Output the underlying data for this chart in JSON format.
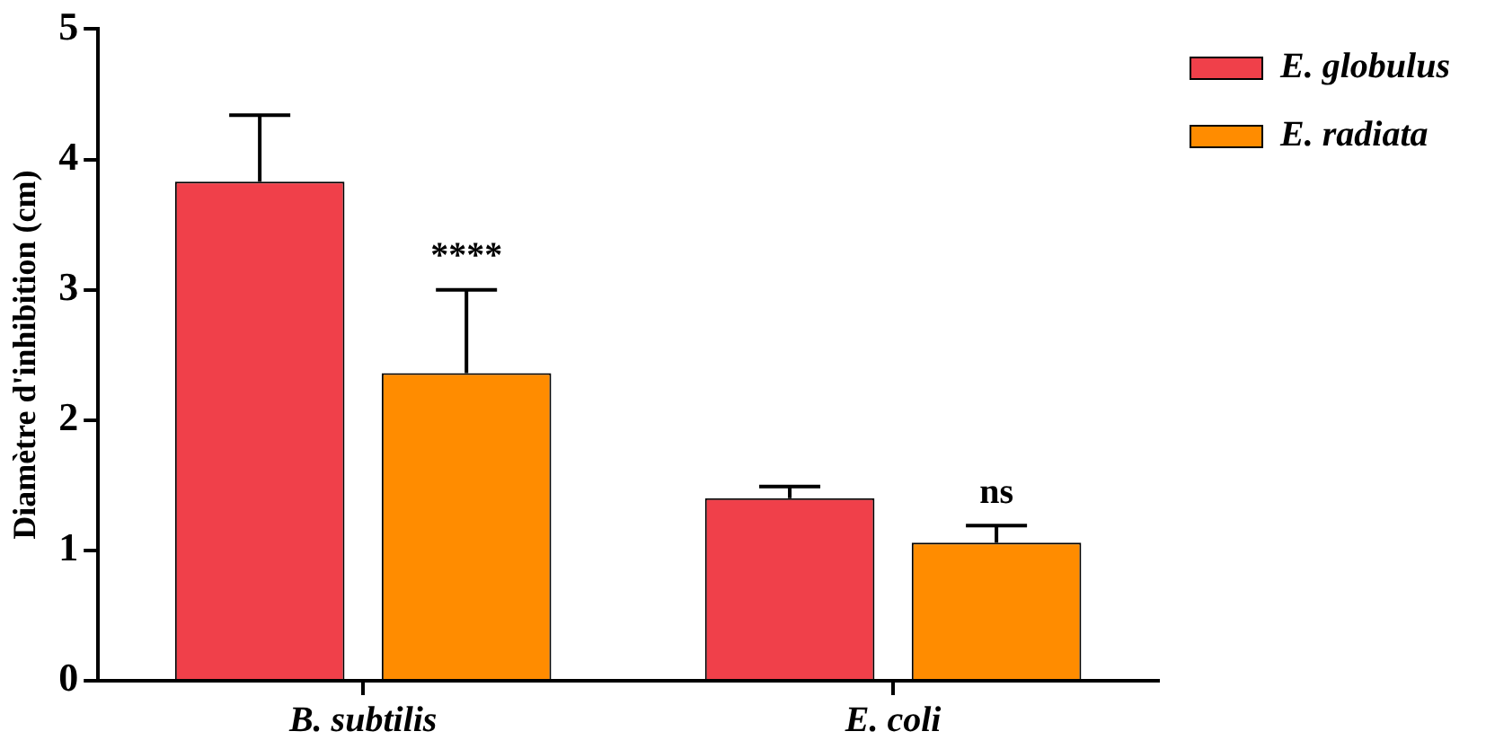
{
  "chart_data": {
    "type": "bar",
    "ylabel": "Diamètre d'inhibition (cm)",
    "categories": [
      "B. subtilis",
      "E. coli"
    ],
    "series": [
      {
        "name": "E. globulus",
        "color": "#f0404a",
        "values": [
          3.83,
          1.4
        ],
        "errors": [
          [
            3.83,
            4.34
          ],
          [
            1.4,
            1.49
          ]
        ]
      },
      {
        "name": "E. radiata",
        "color": "#ff8c00",
        "values": [
          2.36,
          1.06
        ],
        "errors": [
          [
            2.36,
            3.0
          ],
          [
            1.06,
            1.19
          ]
        ]
      }
    ],
    "ylim": [
      0,
      5
    ],
    "yticks": [
      0,
      1,
      2,
      3,
      4,
      5
    ],
    "grid": false,
    "legend": "top right",
    "annotations": [
      "****",
      "ns"
    ]
  }
}
